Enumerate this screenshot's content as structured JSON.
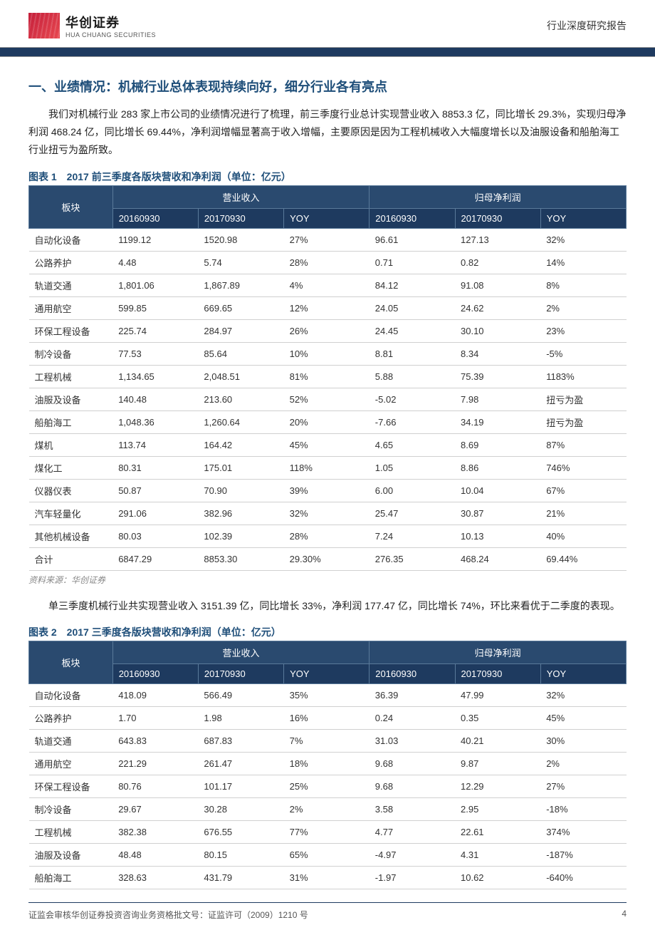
{
  "header": {
    "logo_cn": "华创证券",
    "logo_en": "HUA CHUANG SECURITIES",
    "doc_type": "行业深度研究报告"
  },
  "section_title": "一、业绩情况：机械行业总体表现持续向好，细分行业各有亮点",
  "para1": "我们对机械行业 283 家上市公司的业绩情况进行了梳理，前三季度行业总计实现营业收入 8853.3 亿，同比增长 29.3%，实现归母净利润 468.24 亿，同比增长 69.44%，净利润增幅显著高于收入增幅，主要原因是因为工程机械收入大幅度增长以及油服设备和船舶海工行业扭亏为盈所致。",
  "para2": "单三季度机械行业共实现营业收入 3151.39 亿，同比增长 33%，净利润 177.47 亿，同比增长 74%，环比来看优于二季度的表现。",
  "table1": {
    "title": "图表 1　2017 前三季度各版块营收和净利润（单位：亿元）",
    "source": "资料来源：华创证券",
    "header_sector": "板块",
    "header_rev": "营业收入",
    "header_profit": "归母净利润",
    "sub_headers": [
      "20160930",
      "20170930",
      "YOY",
      "20160930",
      "20170930",
      "YOY"
    ],
    "rows": [
      [
        "自动化设备",
        "1199.12",
        "1520.98",
        "27%",
        "96.61",
        "127.13",
        "32%"
      ],
      [
        "公路养护",
        "4.48",
        "5.74",
        "28%",
        "0.71",
        "0.82",
        "14%"
      ],
      [
        "轨道交通",
        "1,801.06",
        "1,867.89",
        "4%",
        "84.12",
        "91.08",
        "8%"
      ],
      [
        "通用航空",
        "599.85",
        "669.65",
        "12%",
        "24.05",
        "24.62",
        "2%"
      ],
      [
        "环保工程设备",
        "225.74",
        "284.97",
        "26%",
        "24.45",
        "30.10",
        "23%"
      ],
      [
        "制冷设备",
        "77.53",
        "85.64",
        "10%",
        "8.81",
        "8.34",
        "-5%"
      ],
      [
        "工程机械",
        "1,134.65",
        "2,048.51",
        "81%",
        "5.88",
        "75.39",
        "1183%"
      ],
      [
        "油服及设备",
        "140.48",
        "213.60",
        "52%",
        "-5.02",
        "7.98",
        "扭亏为盈"
      ],
      [
        "船舶海工",
        "1,048.36",
        "1,260.64",
        "20%",
        "-7.66",
        "34.19",
        "扭亏为盈"
      ],
      [
        "煤机",
        "113.74",
        "164.42",
        "45%",
        "4.65",
        "8.69",
        "87%"
      ],
      [
        "煤化工",
        "80.31",
        "175.01",
        "118%",
        "1.05",
        "8.86",
        "746%"
      ],
      [
        "仪器仪表",
        "50.87",
        "70.90",
        "39%",
        "6.00",
        "10.04",
        "67%"
      ],
      [
        "汽车轻量化",
        "291.06",
        "382.96",
        "32%",
        "25.47",
        "30.87",
        "21%"
      ],
      [
        "其他机械设备",
        "80.03",
        "102.39",
        "28%",
        "7.24",
        "10.13",
        "40%"
      ],
      [
        "合计",
        "6847.29",
        "8853.30",
        "29.30%",
        "276.35",
        "468.24",
        "69.44%"
      ]
    ],
    "muted_rows": [
      7,
      8
    ]
  },
  "table2": {
    "title": "图表 2　2017 三季度各版块营收和净利润（单位：亿元）",
    "header_sector": "板块",
    "header_rev": "营业收入",
    "header_profit": "归母净利润",
    "sub_headers": [
      "20160930",
      "20170930",
      "YOY",
      "20160930",
      "20170930",
      "YOY"
    ],
    "rows": [
      [
        "自动化设备",
        "418.09",
        "566.49",
        "35%",
        "36.39",
        "47.99",
        "32%"
      ],
      [
        "公路养护",
        "1.70",
        "1.98",
        "16%",
        "0.24",
        "0.35",
        "45%"
      ],
      [
        "轨道交通",
        "643.83",
        "687.83",
        "7%",
        "31.03",
        "40.21",
        "30%"
      ],
      [
        "通用航空",
        "221.29",
        "261.47",
        "18%",
        "9.68",
        "9.87",
        "2%"
      ],
      [
        "环保工程设备",
        "80.76",
        "101.17",
        "25%",
        "9.68",
        "12.29",
        "27%"
      ],
      [
        "制冷设备",
        "29.67",
        "30.28",
        "2%",
        "3.58",
        "2.95",
        "-18%"
      ],
      [
        "工程机械",
        "382.38",
        "676.55",
        "77%",
        "4.77",
        "22.61",
        "374%"
      ],
      [
        "油服及设备",
        "48.48",
        "80.15",
        "65%",
        "-4.97",
        "4.31",
        "-187%"
      ],
      [
        "船舶海工",
        "328.63",
        "431.79",
        "31%",
        "-1.97",
        "10.62",
        "-640%"
      ]
    ]
  },
  "footer": {
    "left": "证监会审核华创证券投资咨询业务资格批文号：证监许可（2009）1210 号",
    "page": "4"
  },
  "colors": {
    "header_bg": "#1e3a5f",
    "accent_text": "#1e4e79",
    "muted": "#888888",
    "border": "#d0d0d0"
  }
}
